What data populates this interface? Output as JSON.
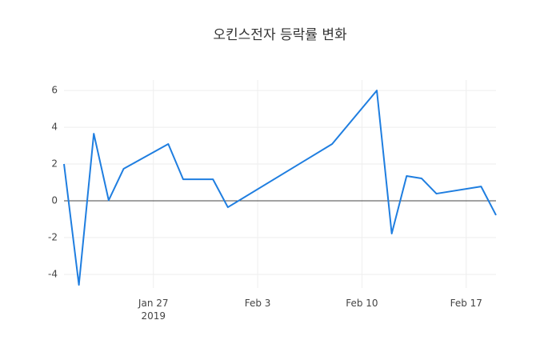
{
  "chart_data": {
    "type": "line",
    "title": "오킨스전자 등락률 변화",
    "x": [
      "2019-01-21",
      "2019-01-22",
      "2019-01-23",
      "2019-01-24",
      "2019-01-25",
      "2019-01-28",
      "2019-01-29",
      "2019-01-31",
      "2019-02-01",
      "2019-02-08",
      "2019-02-11",
      "2019-02-12",
      "2019-02-13",
      "2019-02-14",
      "2019-02-15",
      "2019-02-18",
      "2019-02-19"
    ],
    "series": [
      {
        "color": "#1f7ee0",
        "values": [
          2.0,
          -4.57,
          3.65,
          0.03,
          1.74,
          3.09,
          1.17,
          1.17,
          -0.35,
          3.09,
          6.0,
          -1.78,
          1.35,
          1.22,
          0.39,
          0.78,
          -0.78
        ]
      }
    ],
    "xlim": [
      "2019-01-21",
      "2019-02-19"
    ],
    "xticks": [
      {
        "value": "2019-01-27",
        "label": "Jan 27\n2019"
      },
      {
        "value": "2019-02-03",
        "label": "Feb 3"
      },
      {
        "value": "2019-02-10",
        "label": "Feb 10"
      },
      {
        "value": "2019-02-17",
        "label": "Feb 17"
      }
    ],
    "ylim": [
      -4.74,
      6.57
    ],
    "yticks": [
      -4,
      -2,
      0,
      2,
      4,
      6
    ],
    "grid": true,
    "zeroline": true
  }
}
